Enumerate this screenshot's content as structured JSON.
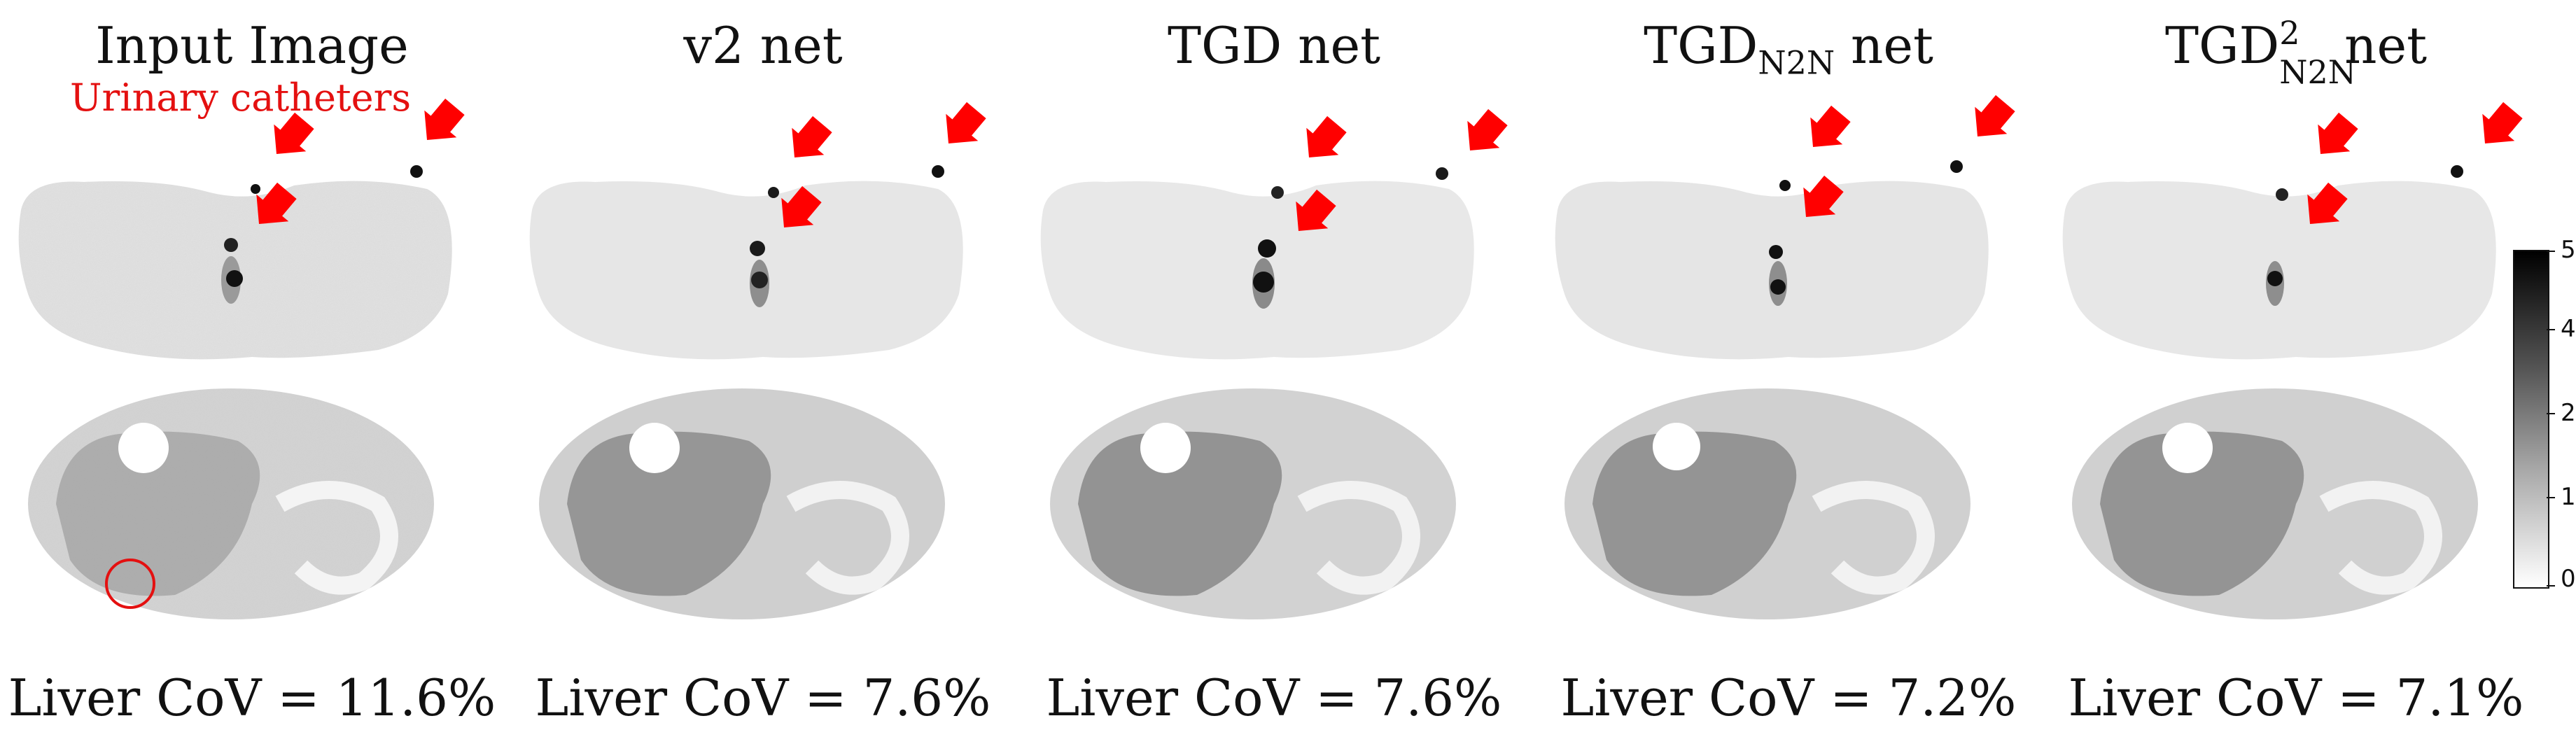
{
  "panels": [
    {
      "title": "Input Image",
      "metric": "Liver CoV = 11.6%"
    },
    {
      "title": "v2 net",
      "metric": "Liver CoV = 7.6%"
    },
    {
      "title": "TGD net",
      "metric": "Liver CoV = 7.6%"
    },
    {
      "title_base": "TGD",
      "title_sub": "N2N",
      "title_suffix": " net",
      "metric": "Liver CoV = 7.2%"
    },
    {
      "title_base": "TGD",
      "title_sup": "2",
      "title_sub": "N2N",
      "title_suffix": " net",
      "metric": "Liver CoV = 7.1%"
    }
  ],
  "annotation": "Urinary catheters",
  "colorbar": {
    "ticks": [
      "5",
      "4",
      "2",
      "1",
      "0"
    ]
  },
  "colors": {
    "arrow": "#ff0000",
    "roi_circle": "#e41010"
  }
}
